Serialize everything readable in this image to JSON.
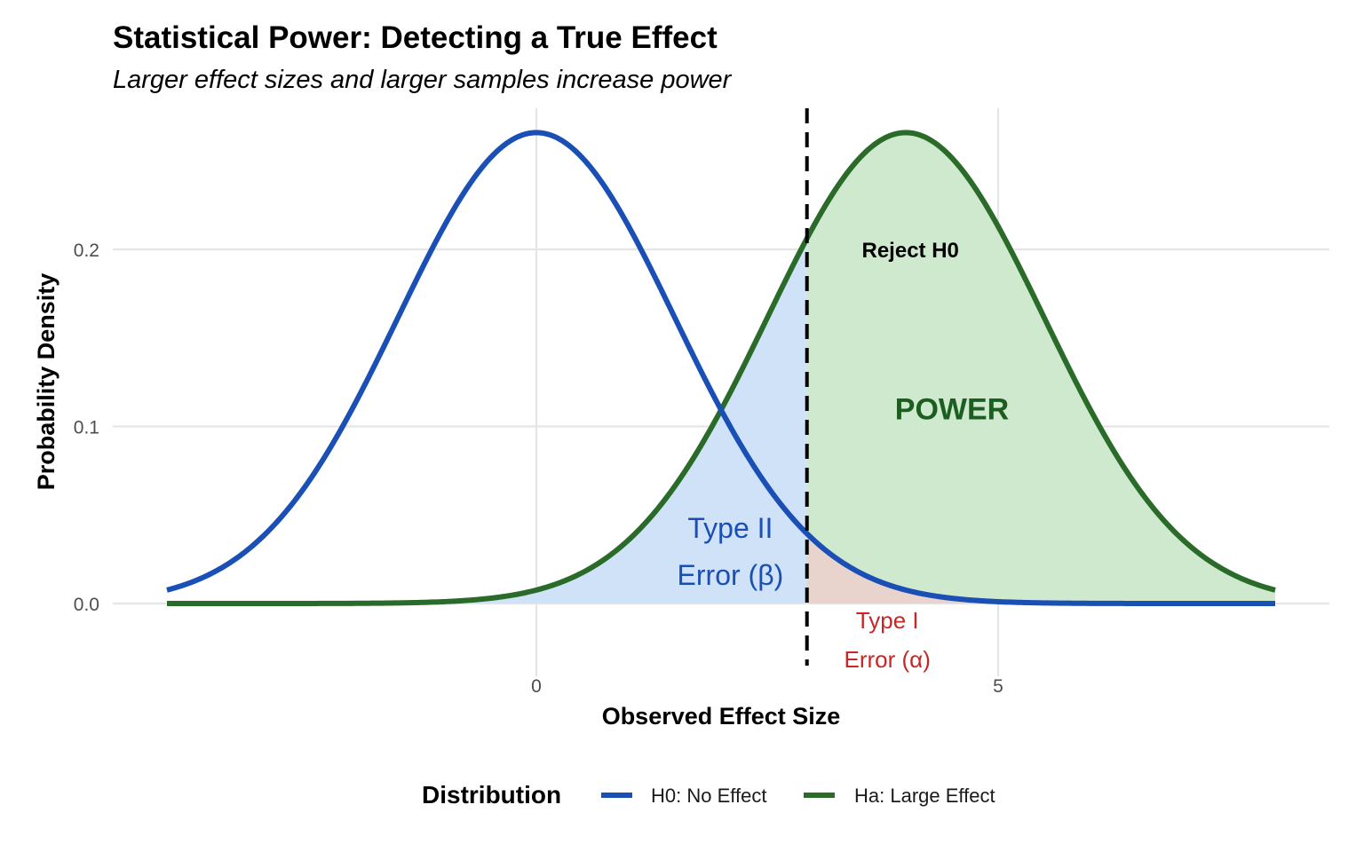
{
  "chart_data": {
    "type": "area",
    "title": "Statistical Power: Detecting a True Effect",
    "subtitle": "Larger effect sizes and larger samples increase power",
    "xlabel": "Observed Effect Size",
    "ylabel": "Probability Density",
    "xlim": [
      -4,
      8
    ],
    "ylim": [
      0,
      0.266
    ],
    "x_ticks": [
      0,
      5
    ],
    "x_tick_labels": [
      "0",
      "5"
    ],
    "y_ticks": [
      0.0,
      0.1,
      0.2
    ],
    "y_tick_labels": [
      "0.0",
      "0.1",
      "0.2"
    ],
    "grid": true,
    "critical_value": 2.93,
    "series": [
      {
        "name": "H0: No Effect",
        "distribution": "normal",
        "mean": 0,
        "sd": 1.5,
        "color": "#1a4fb5"
      },
      {
        "name": "Ha: Large Effect",
        "distribution": "normal",
        "mean": 4,
        "sd": 1.5,
        "color": "#2a6b2a"
      }
    ],
    "regions": [
      {
        "name": "Type II Error (β)",
        "under": "Ha: Large Effect",
        "from": -4,
        "to": 2.93,
        "color": "#cfe2f8"
      },
      {
        "name": "POWER",
        "under": "Ha: Large Effect",
        "from": 2.93,
        "to": 8,
        "color": "#cfe9cf"
      },
      {
        "name": "Type I Error (α)",
        "under": "H0: No Effect",
        "from": 2.93,
        "to": 8,
        "color": "#e8d4cc"
      }
    ],
    "annotations": [
      {
        "text": "Reject H0",
        "x": 4.05,
        "y": 0.2,
        "color": "#000000"
      },
      {
        "text": "POWER",
        "x": 4.5,
        "y": 0.11,
        "color": "#1b5e20"
      },
      {
        "text_lines": [
          "Type II",
          "Error (β)"
        ],
        "x": 2.1,
        "y": 0.032,
        "color": "#1a4fb5"
      },
      {
        "text_lines": [
          "Type I",
          "Error (α)"
        ],
        "x": 3.8,
        "y": -0.02,
        "color": "#c62828"
      }
    ],
    "legend": {
      "title": "Distribution",
      "position": "bottom"
    }
  }
}
